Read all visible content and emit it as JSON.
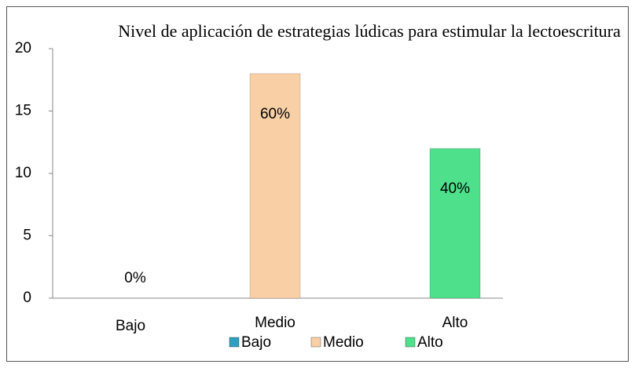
{
  "chart_data": {
    "type": "bar",
    "title": "Nivel de aplicación de estrategias lúdicas para estimular la lectoescritura",
    "categories": [
      "Bajo",
      "Medio",
      "Alto"
    ],
    "values": [
      0,
      18,
      12
    ],
    "value_labels": [
      "0%",
      "60%",
      "40%"
    ],
    "colors": [
      "#2f9fc1",
      "#f9cfa6",
      "#4fe08c"
    ],
    "ylim": [
      0,
      20
    ],
    "yticks": [
      0,
      5,
      10,
      15,
      20
    ],
    "legend": "bottom"
  }
}
